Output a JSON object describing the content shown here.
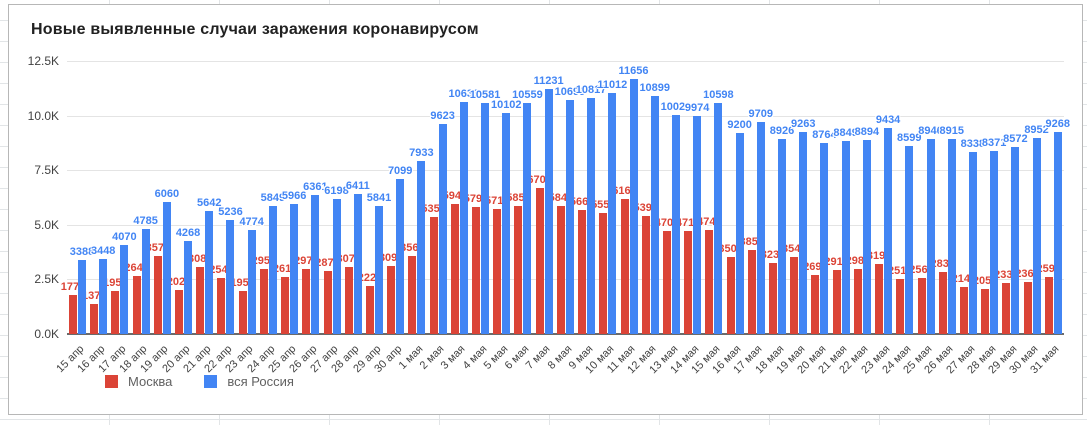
{
  "chart": {
    "title": "Новые выявленные случаи заражения коронавирусом"
  },
  "chart_data": {
    "type": "bar",
    "title": "Новые выявленные случаи заражения коронавирусом",
    "categories": [
      "15 апр",
      "16 апр",
      "17 апр",
      "18 апр",
      "19 апр",
      "20 апр",
      "21 апр",
      "22 апр",
      "23 апр",
      "24 апр",
      "25 апр",
      "26 апр",
      "27 апр",
      "28 апр",
      "29 апр",
      "30 апр",
      "1 мая",
      "2 мая",
      "3 мая",
      "4 мая",
      "5 мая",
      "6 мая",
      "7 мая",
      "8 мая",
      "9 мая",
      "10 мая",
      "11 мая",
      "12 мая",
      "13 мая",
      "14 мая",
      "15 мая",
      "16 мая",
      "17 мая",
      "18 мая",
      "19 мая",
      "20 мая",
      "21 мая",
      "22 мая",
      "23 мая",
      "24 мая",
      "25 мая",
      "26 мая",
      "27 мая",
      "28 мая",
      "29 мая",
      "30 мая",
      "31 мая"
    ],
    "series": [
      {
        "name": "Москва",
        "color": "#db4437",
        "values": [
          1774,
          1370,
          1959,
          2649,
          3570,
          2026,
          3083,
          2548,
          1959,
          2957,
          2612,
          2971,
          2871,
          3075,
          2220,
          3093,
          3561,
          5358,
          5948,
          5795,
          5714,
          5858,
          6703,
          5846,
          5667,
          5551,
          6169,
          5392,
          4703,
          4712,
          4748,
          3505,
          3855,
          3238,
          3545,
          2699,
          2913,
          2988,
          3190,
          2516,
          2560,
          2830,
          2140,
          2054,
          2332,
          2367,
          2595
        ]
      },
      {
        "name": "вся Россия",
        "color": "#4285f4",
        "values": [
          3388,
          3448,
          4070,
          4785,
          6060,
          4268,
          5642,
          5236,
          4774,
          5849,
          5966,
          6361,
          6198,
          6411,
          5841,
          7099,
          7933,
          9623,
          10633,
          10581,
          10102,
          10559,
          11231,
          10699,
          10817,
          11012,
          11656,
          10899,
          10028,
          9974,
          10598,
          9200,
          9709,
          8926,
          9263,
          8764,
          8849,
          8894,
          9434,
          8599,
          8946,
          8915,
          8338,
          8371,
          8572,
          8952,
          9268
        ]
      }
    ],
    "ylim": [
      0,
      12500
    ],
    "y_ticks": [
      {
        "label": "0.0K",
        "value": 0
      },
      {
        "label": "2.5K",
        "value": 2500
      },
      {
        "label": "5.0K",
        "value": 5000
      },
      {
        "label": "7.5K",
        "value": 7500
      },
      {
        "label": "10.0K",
        "value": 10000
      },
      {
        "label": "12.5K",
        "value": 12500
      }
    ],
    "grid": true,
    "data_labels": true,
    "legend_position": "bottom-left",
    "xlabel": "",
    "ylabel": ""
  }
}
